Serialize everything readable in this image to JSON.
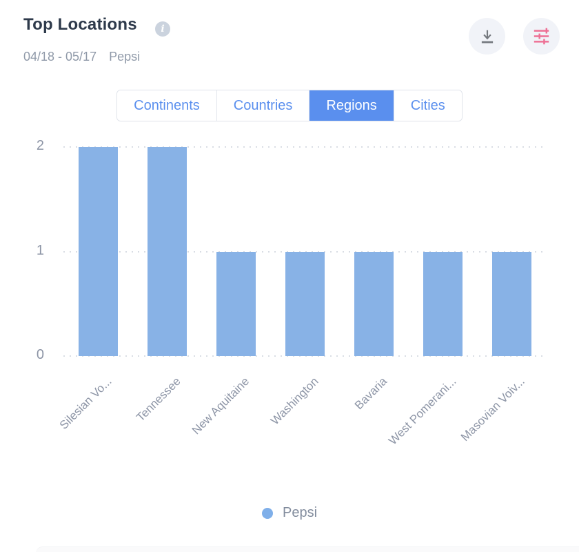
{
  "header": {
    "title": "Top Locations",
    "date_range": "04/18 - 05/17",
    "brand": "Pepsi"
  },
  "toolbar": {
    "download_icon": "download-arrow",
    "filter_icon": "sliders"
  },
  "tabs": [
    {
      "label": "Continents",
      "selected": false
    },
    {
      "label": "Countries",
      "selected": false
    },
    {
      "label": "Regions",
      "selected": true
    },
    {
      "label": "Cities",
      "selected": false
    }
  ],
  "chart_data": {
    "type": "bar",
    "title": "Top Locations",
    "categories": [
      "Silesian Vo...",
      "Tennessee",
      "New Aquitaine",
      "Washington",
      "Bavaria",
      "West Pomerani...",
      "Masovian Voiv..."
    ],
    "series": [
      {
        "name": "Pepsi",
        "values": [
          2,
          2,
          1,
          1,
          1,
          1,
          1
        ]
      }
    ],
    "ylim": [
      0,
      2
    ],
    "yticks": [
      0,
      1,
      2
    ],
    "grid": "horizontal-dotted",
    "legend_position": "bottom",
    "bar_color": "#88b2e6"
  },
  "legend": {
    "label": "Pepsi",
    "color": "#7fafe9"
  },
  "colors": {
    "accent_blue": "#5a8fee",
    "bar_blue": "#88b2e6",
    "filter_pink": "#ee7095",
    "icon_gray": "#74787e",
    "text_dark": "#2e3a4b",
    "text_muted": "#8d95a6"
  }
}
